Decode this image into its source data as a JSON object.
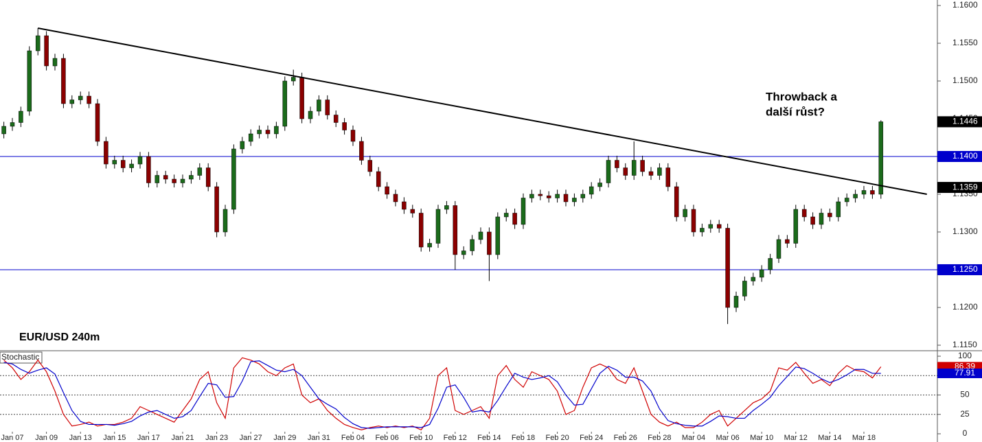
{
  "chart_data": [
    {
      "type": "candlestick",
      "title": "EUR/USD 240m",
      "categories": [
        null,
        "Jan 07",
        null,
        null,
        null,
        "Jan 09",
        null,
        null,
        null,
        "Jan 13",
        null,
        null,
        null,
        "Jan 15",
        null,
        null,
        null,
        "Jan 17",
        null,
        null,
        null,
        "Jan 21",
        null,
        null,
        null,
        "Jan 23",
        null,
        null,
        null,
        "Jan 27",
        null,
        null,
        null,
        "Jan 29",
        null,
        null,
        null,
        "Jan 31",
        null,
        null,
        null,
        "Feb 04",
        null,
        null,
        null,
        "Feb 06",
        null,
        null,
        null,
        "Feb 10",
        null,
        null,
        null,
        "Feb 12",
        null,
        null,
        null,
        "Feb 14",
        null,
        null,
        null,
        "Feb 18",
        null,
        null,
        null,
        "Feb 20",
        null,
        null,
        null,
        "Feb 24",
        null,
        null,
        null,
        "Feb 26",
        null,
        null,
        null,
        "Feb 28",
        null,
        null,
        null,
        "Mar 04",
        null,
        null,
        null,
        "Mar 06",
        null,
        null,
        null,
        "Mar 10",
        null,
        null,
        null,
        "Mar 12",
        null,
        null,
        null,
        "Mar 14",
        null,
        null,
        null,
        "Mar 18",
        null,
        null
      ],
      "candles": [
        [
          1.143,
          1.1446,
          1.1424,
          1.144
        ],
        [
          1.144,
          1.1451,
          1.1434,
          1.1445
        ],
        [
          1.1445,
          1.1466,
          1.1439,
          1.146
        ],
        [
          1.146,
          1.1546,
          1.1454,
          1.154
        ],
        [
          1.154,
          1.157,
          1.1534,
          1.156
        ],
        [
          1.156,
          1.1566,
          1.1514,
          1.152
        ],
        [
          1.152,
          1.1536,
          1.1514,
          1.153
        ],
        [
          1.153,
          1.1536,
          1.1464,
          1.147
        ],
        [
          1.147,
          1.1481,
          1.1464,
          1.1475
        ],
        [
          1.1475,
          1.1486,
          1.1469,
          1.148
        ],
        [
          1.148,
          1.1486,
          1.1464,
          1.147
        ],
        [
          1.147,
          1.1476,
          1.1414,
          1.142
        ],
        [
          1.142,
          1.1426,
          1.1384,
          1.139
        ],
        [
          1.139,
          1.1401,
          1.1384,
          1.1395
        ],
        [
          1.1395,
          1.1401,
          1.1379,
          1.1385
        ],
        [
          1.1385,
          1.1396,
          1.1379,
          1.139
        ],
        [
          1.139,
          1.1406,
          1.1384,
          1.14
        ],
        [
          1.14,
          1.1406,
          1.1359,
          1.1365
        ],
        [
          1.1365,
          1.1381,
          1.1359,
          1.1375
        ],
        [
          1.1375,
          1.1381,
          1.1364,
          1.137
        ],
        [
          1.137,
          1.1376,
          1.1359,
          1.1365
        ],
        [
          1.1365,
          1.1376,
          1.1359,
          1.137
        ],
        [
          1.137,
          1.1381,
          1.1364,
          1.1375
        ],
        [
          1.1375,
          1.1391,
          1.1369,
          1.1385
        ],
        [
          1.1385,
          1.1391,
          1.1354,
          1.136
        ],
        [
          1.136,
          1.1366,
          1.1293,
          1.13
        ],
        [
          1.13,
          1.1336,
          1.1294,
          1.133
        ],
        [
          1.133,
          1.1416,
          1.1324,
          1.141
        ],
        [
          1.141,
          1.1426,
          1.1404,
          1.142
        ],
        [
          1.142,
          1.1436,
          1.1414,
          1.143
        ],
        [
          1.143,
          1.1441,
          1.1424,
          1.1435
        ],
        [
          1.1435,
          1.1441,
          1.1424,
          1.143
        ],
        [
          1.143,
          1.1446,
          1.1424,
          1.144
        ],
        [
          1.144,
          1.1506,
          1.1434,
          1.15
        ],
        [
          1.15,
          1.1515,
          1.1494,
          1.1505
        ],
        [
          1.1505,
          1.1511,
          1.1444,
          1.145
        ],
        [
          1.145,
          1.1466,
          1.1444,
          1.146
        ],
        [
          1.146,
          1.1481,
          1.1454,
          1.1475
        ],
        [
          1.1475,
          1.1481,
          1.1449,
          1.1455
        ],
        [
          1.1455,
          1.1461,
          1.1439,
          1.1445
        ],
        [
          1.1445,
          1.1451,
          1.1429,
          1.1435
        ],
        [
          1.1435,
          1.1441,
          1.1414,
          1.142
        ],
        [
          1.142,
          1.1426,
          1.1389,
          1.1395
        ],
        [
          1.1395,
          1.1401,
          1.1374,
          1.138
        ],
        [
          1.138,
          1.1386,
          1.1354,
          1.136
        ],
        [
          1.136,
          1.1366,
          1.1344,
          1.135
        ],
        [
          1.135,
          1.1356,
          1.1334,
          1.134
        ],
        [
          1.134,
          1.1346,
          1.1324,
          1.133
        ],
        [
          1.133,
          1.1336,
          1.1319,
          1.1325
        ],
        [
          1.1325,
          1.1331,
          1.1274,
          1.128
        ],
        [
          1.128,
          1.1291,
          1.1274,
          1.1285
        ],
        [
          1.1285,
          1.1336,
          1.1279,
          1.133
        ],
        [
          1.133,
          1.1341,
          1.1324,
          1.1335
        ],
        [
          1.1335,
          1.1341,
          1.125,
          1.127
        ],
        [
          1.127,
          1.1281,
          1.1264,
          1.1275
        ],
        [
          1.1275,
          1.1296,
          1.1269,
          1.129
        ],
        [
          1.129,
          1.1306,
          1.1284,
          1.13
        ],
        [
          1.13,
          1.1306,
          1.1235,
          1.127
        ],
        [
          1.127,
          1.1326,
          1.1264,
          1.132
        ],
        [
          1.132,
          1.1331,
          1.1314,
          1.1325
        ],
        [
          1.1325,
          1.1331,
          1.1304,
          1.131
        ],
        [
          1.131,
          1.1351,
          1.1304,
          1.1345
        ],
        [
          1.1345,
          1.1356,
          1.1339,
          1.135
        ],
        [
          1.135,
          1.1356,
          1.1342,
          1.1348
        ],
        [
          1.1348,
          1.1354,
          1.1339,
          1.1345
        ],
        [
          1.1345,
          1.1356,
          1.1339,
          1.135
        ],
        [
          1.135,
          1.1356,
          1.1334,
          1.134
        ],
        [
          1.134,
          1.1351,
          1.1334,
          1.1345
        ],
        [
          1.1345,
          1.1356,
          1.1339,
          1.135
        ],
        [
          1.135,
          1.1366,
          1.1344,
          1.136
        ],
        [
          1.136,
          1.1371,
          1.1354,
          1.1365
        ],
        [
          1.1365,
          1.1401,
          1.1359,
          1.1395
        ],
        [
          1.1395,
          1.1401,
          1.1379,
          1.1385
        ],
        [
          1.1385,
          1.1391,
          1.1369,
          1.1375
        ],
        [
          1.1375,
          1.142,
          1.1369,
          1.1395
        ],
        [
          1.1395,
          1.1401,
          1.1374,
          1.138
        ],
        [
          1.138,
          1.1386,
          1.1369,
          1.1375
        ],
        [
          1.1375,
          1.1391,
          1.1369,
          1.1385
        ],
        [
          1.1385,
          1.1391,
          1.1354,
          1.136
        ],
        [
          1.136,
          1.1366,
          1.1314,
          1.132
        ],
        [
          1.132,
          1.1336,
          1.1314,
          1.133
        ],
        [
          1.133,
          1.1336,
          1.1294,
          1.13
        ],
        [
          1.13,
          1.1311,
          1.1294,
          1.1305
        ],
        [
          1.1305,
          1.1316,
          1.1299,
          1.131
        ],
        [
          1.131,
          1.1316,
          1.1299,
          1.1305
        ],
        [
          1.1305,
          1.1311,
          1.1178,
          1.12
        ],
        [
          1.12,
          1.1221,
          1.1194,
          1.1215
        ],
        [
          1.1215,
          1.1241,
          1.1209,
          1.1235
        ],
        [
          1.1235,
          1.1246,
          1.1229,
          1.124
        ],
        [
          1.124,
          1.1256,
          1.1234,
          1.125
        ],
        [
          1.125,
          1.1271,
          1.1244,
          1.1265
        ],
        [
          1.1265,
          1.1296,
          1.1259,
          1.129
        ],
        [
          1.129,
          1.1296,
          1.1279,
          1.1285
        ],
        [
          1.1285,
          1.1336,
          1.1279,
          1.133
        ],
        [
          1.133,
          1.1336,
          1.1314,
          1.132
        ],
        [
          1.132,
          1.1326,
          1.1304,
          1.131
        ],
        [
          1.131,
          1.1331,
          1.1304,
          1.1325
        ],
        [
          1.1325,
          1.1331,
          1.1314,
          1.132
        ],
        [
          1.132,
          1.1346,
          1.1314,
          1.134
        ],
        [
          1.134,
          1.1351,
          1.1334,
          1.1345
        ],
        [
          1.1345,
          1.1356,
          1.1339,
          1.135
        ],
        [
          1.135,
          1.1361,
          1.1344,
          1.1355
        ],
        [
          1.1355,
          1.1361,
          1.1344,
          1.135
        ],
        [
          1.135,
          1.1448,
          1.1344,
          1.1446
        ]
      ],
      "up_color": "#1b6b1b",
      "down_color": "#8b0000",
      "ylim": [
        1.11436,
        1.16073
      ],
      "yticks": [
        {
          "value": 1.115,
          "label": "1.1150"
        },
        {
          "value": 1.12,
          "label": "1.1200"
        },
        {
          "value": 1.125,
          "label": "1.1250"
        },
        {
          "value": 1.13,
          "label": "1.1300"
        },
        {
          "value": 1.135,
          "label": "1.1350"
        },
        {
          "value": 1.14,
          "label": "1.1400"
        },
        {
          "value": 1.145,
          "label": "1.1450"
        },
        {
          "value": 1.15,
          "label": "1.1500"
        },
        {
          "value": 1.155,
          "label": "1.1550"
        },
        {
          "value": 1.16,
          "label": "1.1600"
        }
      ],
      "hlines": {
        "color": "#0000cc",
        "values": [
          {
            "value": 1.14,
            "label": "1.1400"
          },
          {
            "value": 1.125,
            "label": "1.1250"
          }
        ]
      },
      "trendline": {
        "color": "#000000",
        "x": [
          4,
          108.4
        ],
        "y": [
          1.157,
          1.135
        ]
      },
      "price_labels": [
        {
          "value": 1.1446,
          "label": "1.1446"
        },
        {
          "value": 1.1359,
          "label": "1.1359"
        }
      ],
      "annotation": [
        "Throwback a",
        "další růst?"
      ]
    },
    {
      "type": "line",
      "title": "Stochastic",
      "ylim": [
        -10.6,
        106.2
      ],
      "yticks": [
        0,
        25,
        50,
        75,
        100
      ],
      "levels": [
        25,
        50,
        75
      ],
      "series": [
        {
          "color": "#d00000",
          "values": [
            95,
            85,
            70,
            80,
            95,
            80,
            55,
            25,
            10,
            12,
            15,
            10,
            12,
            12,
            15,
            20,
            35,
            30,
            25,
            20,
            15,
            30,
            45,
            70,
            80,
            40,
            20,
            85,
            98,
            95,
            90,
            80,
            75,
            85,
            90,
            50,
            40,
            45,
            30,
            20,
            12,
            8,
            5,
            8,
            10,
            8,
            10,
            8,
            10,
            5,
            20,
            75,
            85,
            30,
            25,
            30,
            35,
            20,
            75,
            88,
            70,
            60,
            80,
            75,
            70,
            55,
            25,
            30,
            60,
            85,
            90,
            85,
            70,
            65,
            85,
            55,
            25,
            15,
            10,
            15,
            8,
            8,
            15,
            25,
            30,
            10,
            20,
            30,
            40,
            45,
            55,
            85,
            82,
            92,
            78,
            65,
            70,
            62,
            78,
            88,
            82,
            80,
            72,
            86.39
          ]
        },
        {
          "color": "#0000cc",
          "values": [
            92,
            90,
            83,
            78,
            82,
            85,
            77,
            53,
            30,
            16,
            12,
            12,
            12,
            11,
            13,
            16,
            23,
            28,
            30,
            25,
            20,
            22,
            30,
            48,
            65,
            63,
            47,
            48,
            68,
            93,
            94,
            88,
            82,
            80,
            83,
            75,
            60,
            45,
            38,
            32,
            21,
            13,
            8,
            7,
            8,
            9,
            9,
            9,
            9,
            8,
            12,
            33,
            60,
            63,
            47,
            28,
            30,
            28,
            43,
            61,
            78,
            73,
            70,
            72,
            75,
            67,
            50,
            37,
            38,
            58,
            78,
            87,
            82,
            73,
            73,
            68,
            55,
            32,
            17,
            13,
            11,
            10,
            10,
            16,
            23,
            22,
            20,
            20,
            30,
            38,
            47,
            62,
            74,
            86,
            84,
            78,
            71,
            66,
            70,
            76,
            83,
            83,
            78,
            77.91
          ]
        }
      ]
    }
  ]
}
